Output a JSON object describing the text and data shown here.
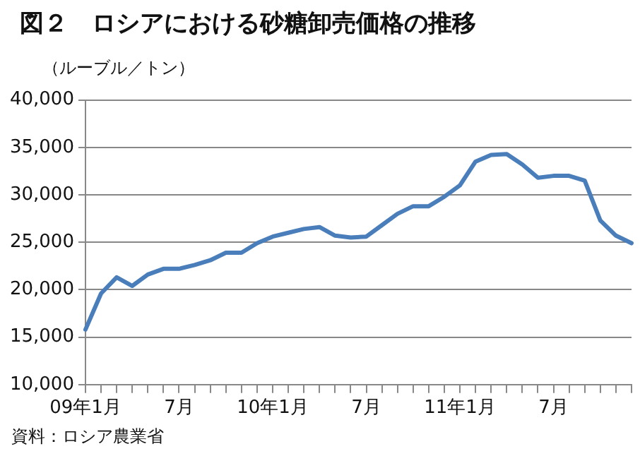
{
  "chart_data": {
    "type": "line",
    "title": "図２　ロシアにおける砂糖卸売価格の推移",
    "ylabel": "（ルーブル／トン）",
    "annotations": [
      "資料：ロシア農業省"
    ],
    "categories": [
      "09年1月",
      null,
      null,
      null,
      null,
      null,
      "7月",
      null,
      null,
      null,
      null,
      null,
      "10年1月",
      null,
      null,
      null,
      null,
      null,
      "7月",
      null,
      null,
      null,
      null,
      null,
      "11年1月",
      null,
      null,
      null,
      null,
      null,
      "7月",
      null,
      null,
      null,
      null,
      null
    ],
    "series": [
      {
        "color": "#4a7ebb",
        "values": [
          15800,
          19600,
          21300,
          20400,
          21600,
          22200,
          22200,
          22600,
          23100,
          23900,
          23900,
          24900,
          25600,
          26000,
          26400,
          26600,
          25700,
          25500,
          25600,
          26800,
          28000,
          28800,
          28800,
          29800,
          31000,
          33500,
          34200,
          34300,
          33200,
          31800,
          32000,
          32000,
          31500,
          27300,
          25700,
          24900
        ]
      }
    ],
    "ylim": [
      10000,
      40000
    ],
    "yticks": [
      {
        "value": 10000,
        "label": "10,000"
      },
      {
        "value": 15000,
        "label": "15,000"
      },
      {
        "value": 20000,
        "label": "20,000"
      },
      {
        "value": 25000,
        "label": "25,000"
      },
      {
        "value": 30000,
        "label": "30,000"
      },
      {
        "value": 35000,
        "label": "35,000"
      },
      {
        "value": 40000,
        "label": "40,000"
      }
    ],
    "grid": "y",
    "legend": false,
    "marker": "none",
    "line_style": "solid"
  }
}
